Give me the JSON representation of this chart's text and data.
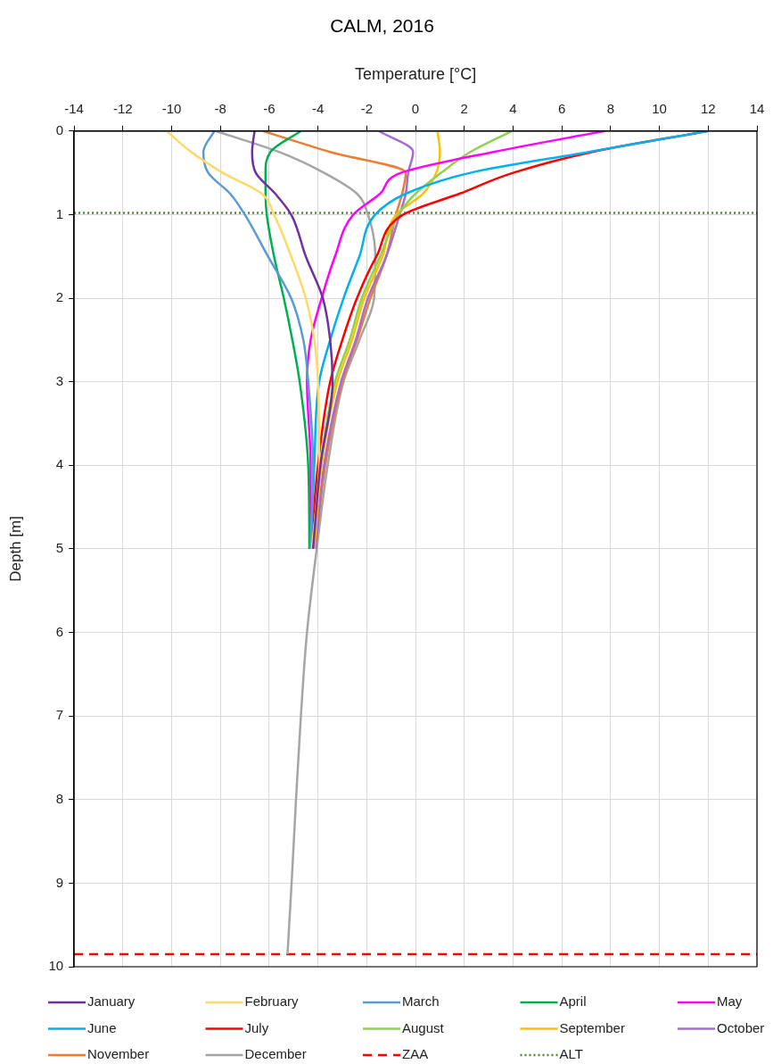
{
  "chart_data": {
    "type": "line",
    "title": "CALM, 2016",
    "xlabel": "Temperature [°C]",
    "ylabel": "Depth [m]",
    "xlim": [
      -14,
      14
    ],
    "xticks": [
      -14,
      -12,
      -10,
      -8,
      -6,
      -4,
      -2,
      0,
      2,
      4,
      6,
      8,
      10,
      12,
      14
    ],
    "ylim": [
      10,
      0
    ],
    "yticks": [
      0,
      1,
      2,
      3,
      4,
      5,
      6,
      7,
      8,
      9,
      10
    ],
    "grid": true,
    "legend": "bottom",
    "line_style": "solid",
    "marker": "none",
    "series": [
      {
        "name": "January",
        "color": "#7030a0",
        "x": [
          -6.6,
          -6.7,
          -6.55,
          -5.75,
          -5.1,
          -4.5,
          -3.8,
          -3.5,
          -3.4,
          -3.9,
          -4.2,
          null,
          null,
          null,
          null,
          null
        ],
        "values": [
          0,
          0.25,
          0.5,
          0.75,
          1,
          1.5,
          2,
          2.5,
          3,
          4,
          5,
          null,
          null,
          null,
          null,
          null
        ]
      },
      {
        "name": "February",
        "color": "#ffd966",
        "x": [
          -10.2,
          -9.2,
          -7.9,
          -6.3,
          -5.8,
          -5.1,
          -4.5,
          -4.15,
          -4.0,
          -3.95,
          -4.25,
          null,
          null,
          null,
          null,
          null
        ],
        "values": [
          0,
          0.25,
          0.5,
          0.75,
          1,
          1.5,
          2,
          2.5,
          3,
          4,
          5,
          null,
          null,
          null,
          null,
          null
        ]
      },
      {
        "name": "March",
        "color": "#5b9bd5",
        "x": [
          -8.25,
          -8.7,
          -8.5,
          -7.6,
          -7.0,
          -6.05,
          -5.1,
          -4.6,
          -4.4,
          -4.2,
          -4.3,
          null,
          null,
          null,
          null,
          null
        ],
        "values": [
          0,
          0.25,
          0.5,
          0.75,
          1,
          1.5,
          2,
          2.5,
          3,
          4,
          5,
          null,
          null,
          null,
          null,
          null
        ]
      },
      {
        "name": "April",
        "color": "#00b050",
        "x": [
          -4.7,
          -5.95,
          -6.15,
          -6.15,
          -6.1,
          -5.8,
          -5.4,
          -5.05,
          -4.75,
          -4.4,
          -4.35,
          null,
          null,
          null,
          null,
          null
        ],
        "values": [
          0,
          0.25,
          0.5,
          0.75,
          1,
          1.5,
          2,
          2.5,
          3,
          4,
          5,
          null,
          null,
          null,
          null,
          null
        ]
      },
      {
        "name": "May",
        "color": "#ff00ff",
        "x": [
          7.75,
          3.2,
          -0.6,
          -1.45,
          -2.55,
          -3.3,
          -3.85,
          -4.3,
          -4.45,
          -4.3,
          -4.35,
          null,
          null,
          null,
          null,
          null
        ],
        "values": [
          0,
          0.25,
          0.5,
          0.75,
          1,
          1.5,
          2,
          2.5,
          3,
          4,
          5,
          null,
          null,
          null,
          null,
          null
        ]
      },
      {
        "name": "June",
        "color": "#00b0f0",
        "x": [
          12,
          7.1,
          2.25,
          -0.4,
          -1.65,
          -2.3,
          -2.95,
          -3.5,
          -3.95,
          -4.15,
          -4.3,
          null,
          null,
          null,
          null,
          null
        ],
        "values": [
          0,
          0.25,
          0.5,
          0.75,
          1,
          1.5,
          2,
          2.5,
          3,
          4,
          5,
          null,
          null,
          null,
          null,
          null
        ]
      },
      {
        "name": "July",
        "color": "#ff0000",
        "x": [
          12,
          7.25,
          4.0,
          1.8,
          -0.5,
          -1.6,
          -2.4,
          -3.0,
          -3.5,
          -4.0,
          -4.3,
          null,
          null,
          null,
          null,
          null
        ],
        "values": [
          0,
          0.25,
          0.5,
          0.75,
          1,
          1.5,
          2,
          2.5,
          3,
          4,
          5,
          null,
          null,
          null,
          null,
          null
        ]
      },
      {
        "name": "August",
        "color": "#92d050",
        "x": [
          3.95,
          2.25,
          1.05,
          0.0,
          -0.7,
          -1.45,
          -2.2,
          -2.7,
          -3.3,
          -3.9,
          -4.2,
          null,
          null,
          null,
          null,
          null
        ],
        "values": [
          0,
          0.25,
          0.5,
          0.75,
          1,
          1.5,
          2,
          2.5,
          3,
          4,
          5,
          null,
          null,
          null,
          null,
          null
        ]
      },
      {
        "name": "September",
        "color": "#ffc000",
        "x": [
          0.9,
          1.0,
          0.85,
          0.3,
          -0.8,
          -1.35,
          -2.1,
          -2.6,
          -3.2,
          -3.85,
          -4.15,
          null,
          null,
          null,
          null,
          null
        ],
        "values": [
          0,
          0.25,
          0.5,
          0.75,
          1,
          1.5,
          2,
          2.5,
          3,
          4,
          5,
          null,
          null,
          null,
          null,
          null
        ]
      },
      {
        "name": "October",
        "color": "#a56cd6",
        "x": [
          -1.5,
          -0.1,
          -0.3,
          -0.4,
          -0.65,
          -1.2,
          -1.95,
          -2.45,
          -3.05,
          -3.75,
          -4.1,
          null,
          null,
          null,
          null,
          null
        ],
        "values": [
          0,
          0.25,
          0.5,
          0.75,
          1,
          1.5,
          2,
          2.5,
          3,
          4,
          5,
          null,
          null,
          null,
          null,
          null
        ]
      },
      {
        "name": "November",
        "color": "#ed7d31",
        "x": [
          -6.25,
          -3.5,
          -0.4,
          -0.55,
          -0.8,
          -1.2,
          -1.85,
          -2.4,
          -3.0,
          -3.7,
          -4.1,
          null,
          null,
          null,
          null,
          null
        ],
        "values": [
          0,
          0.25,
          0.5,
          0.75,
          1,
          1.5,
          2,
          2.5,
          3,
          4,
          5,
          null,
          null,
          null,
          null,
          null
        ]
      },
      {
        "name": "December",
        "color": "#a5a5a5",
        "x": [
          -8.2,
          -5.6,
          -3.75,
          -2.4,
          -1.95,
          -1.65,
          -1.7,
          -2.3,
          -2.95,
          -3.6,
          -4.05,
          -4.45,
          -4.7,
          -4.9,
          -5.08,
          -5.25
        ],
        "values": [
          0,
          0.25,
          0.5,
          0.75,
          1,
          1.5,
          2,
          2.5,
          3,
          4,
          5,
          6,
          7,
          8,
          9,
          9.85
        ]
      }
    ],
    "ref_lines": [
      {
        "axis": "y",
        "value": 9.85,
        "label": "ZAA",
        "color": "#ff0000",
        "line_style": "dashed"
      },
      {
        "axis": "y",
        "value": 0.98,
        "label": "ALT",
        "color": "#548235",
        "line_style": "dotted"
      }
    ]
  }
}
